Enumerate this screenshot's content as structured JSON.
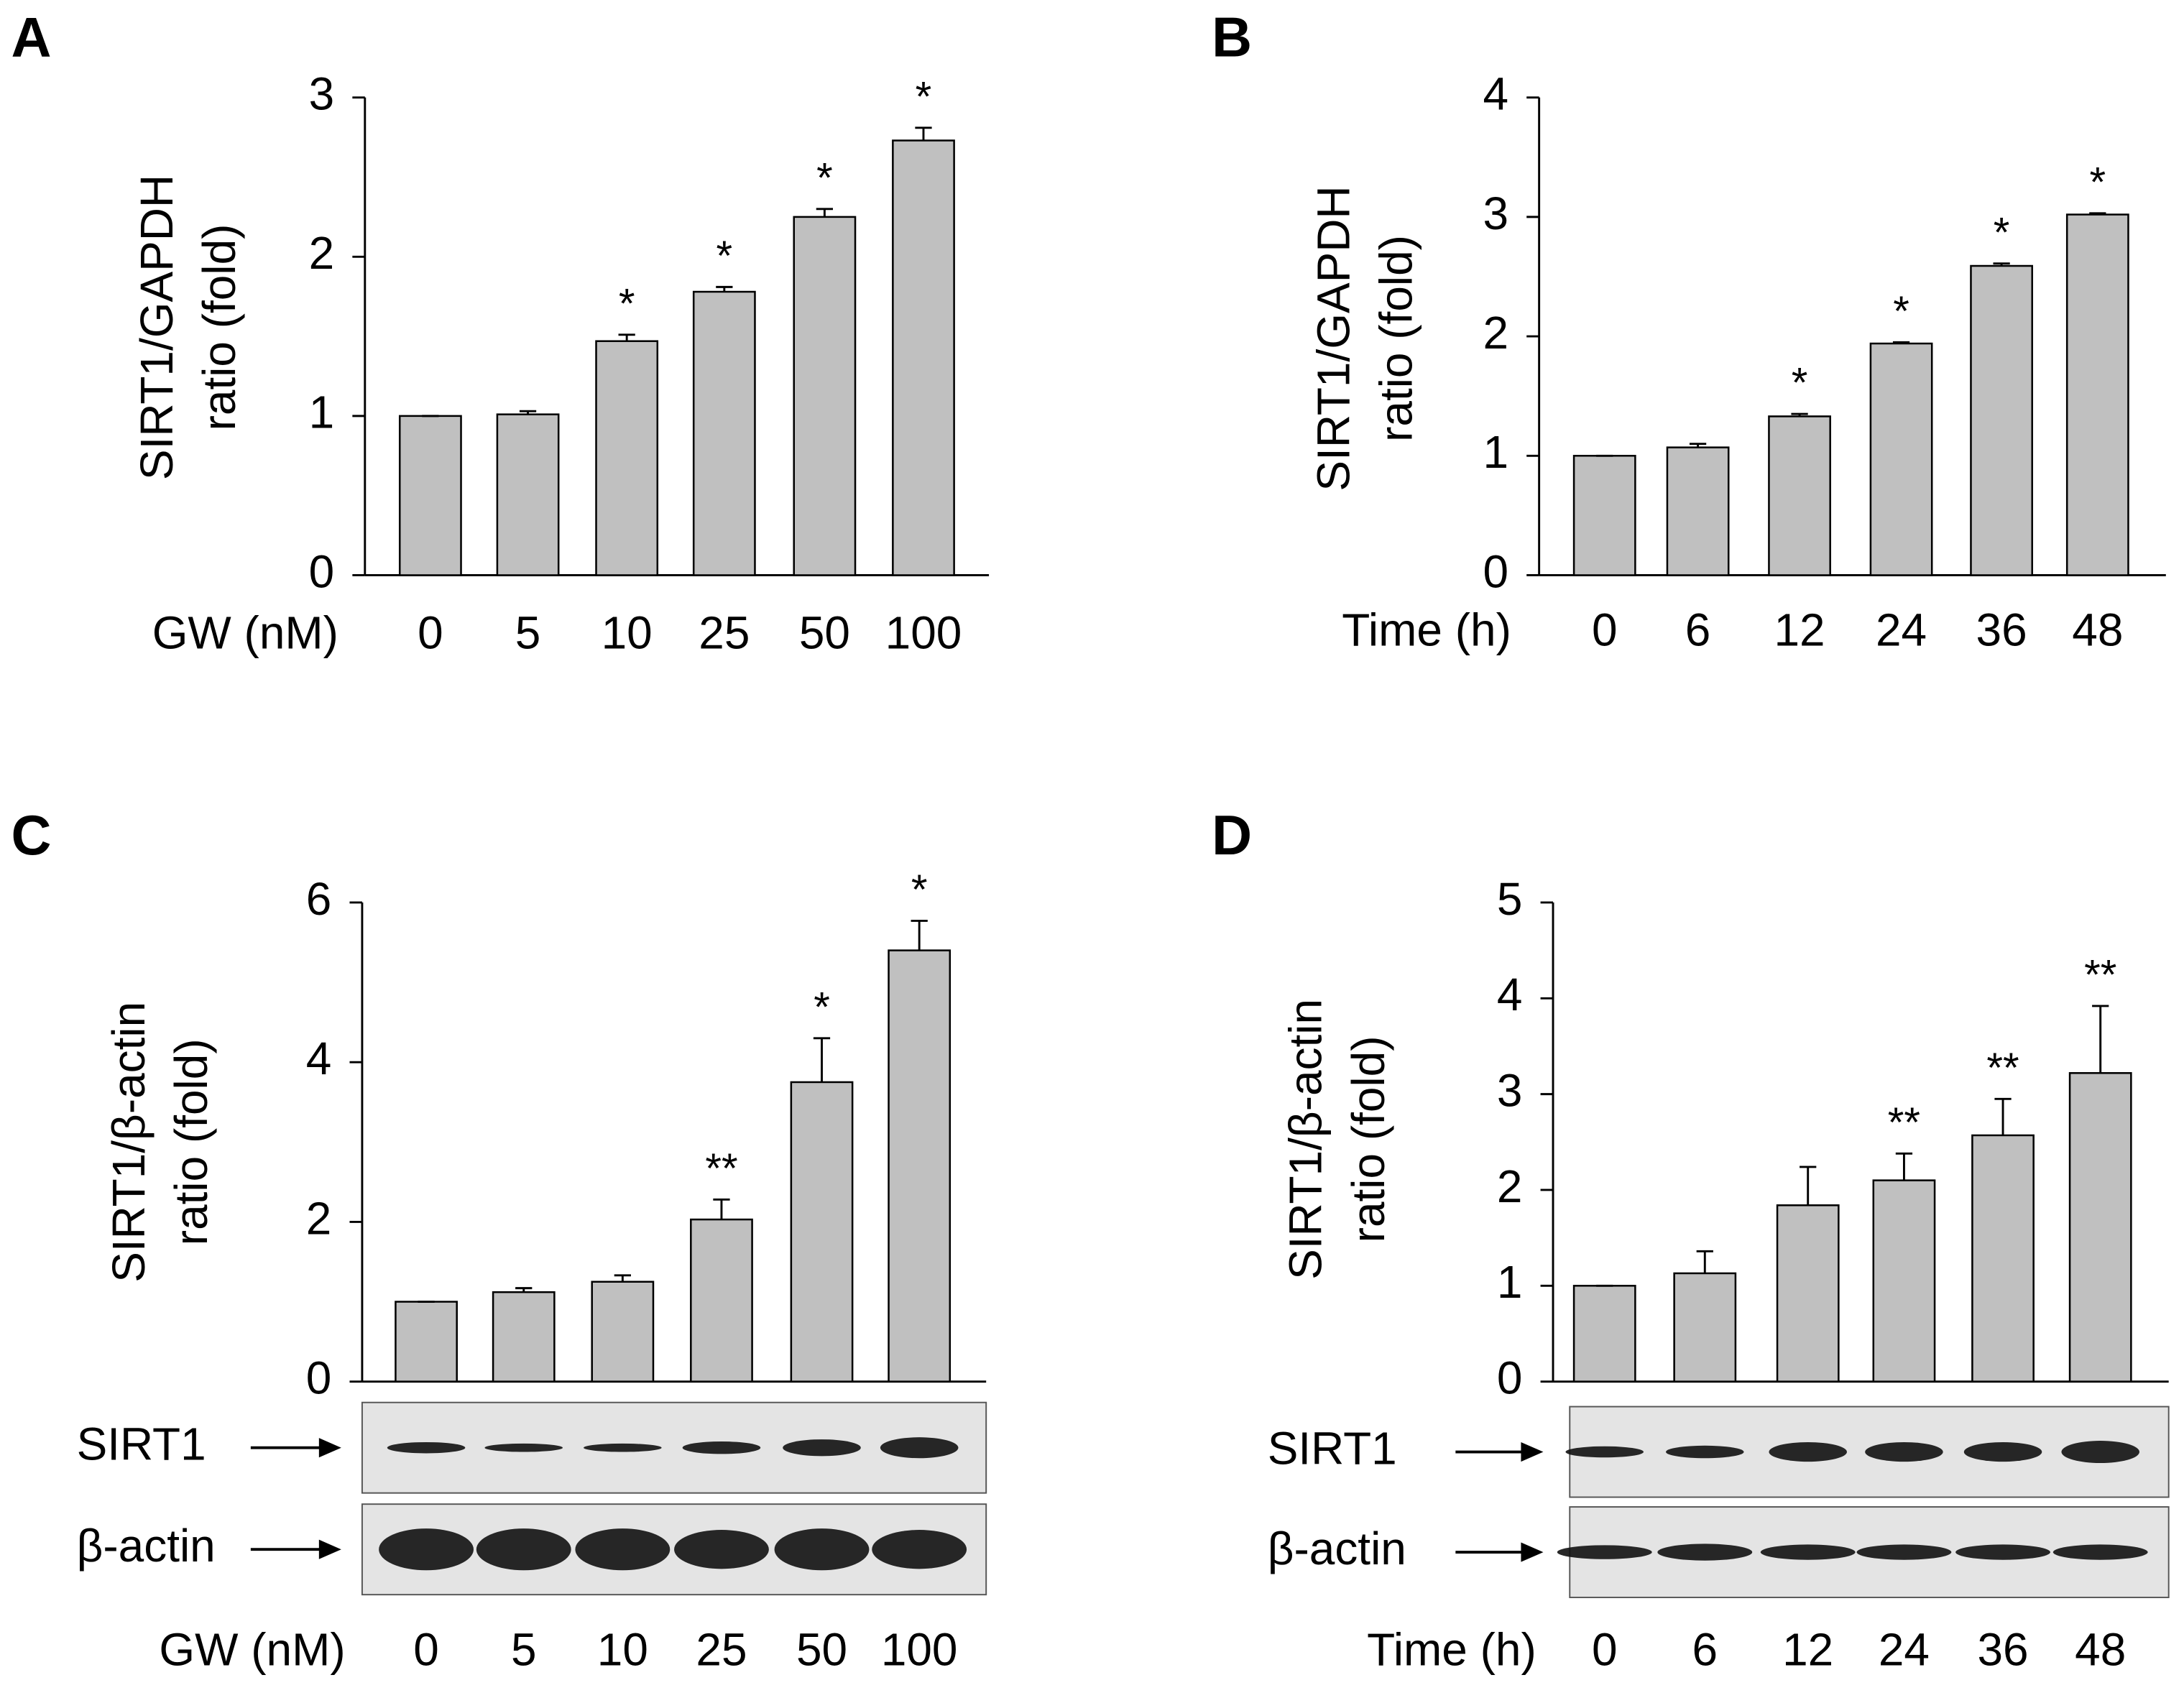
{
  "chart_data": [
    {
      "type": "bar",
      "panel": "A",
      "ylabel": [
        "SIRT1/GAPDH",
        "ratio (fold)"
      ],
      "xlabel": "GW (nM)",
      "categories": [
        "0",
        "5",
        "10",
        "25",
        "50",
        "100"
      ],
      "values": [
        1,
        1.01,
        1.47,
        1.78,
        2.25,
        2.73
      ],
      "errors": [
        0,
        0.02,
        0.04,
        0.03,
        0.05,
        0.08
      ],
      "annotations": [
        null,
        null,
        "*",
        "*",
        "*",
        "*"
      ],
      "color": "#c0c0c0",
      "ylim": [
        0,
        3
      ],
      "yticks": [
        0,
        1,
        2,
        3
      ]
    },
    {
      "type": "bar",
      "panel": "B",
      "ylabel": [
        "SIRT1/GAPDH",
        "ratio (fold)"
      ],
      "xlabel": "Time (h)",
      "categories": [
        "0",
        "6",
        "12",
        "24",
        "36",
        "48"
      ],
      "values": [
        1,
        1.07,
        1.33,
        1.94,
        2.59,
        3.02
      ],
      "errors": [
        0,
        0.03,
        0.02,
        0.01,
        0.02,
        0.01
      ],
      "annotations": [
        null,
        null,
        "*",
        "*",
        "*",
        "*"
      ],
      "color": "#c0c0c0",
      "ylim": [
        0,
        4
      ],
      "yticks": [
        0,
        1,
        2,
        3,
        4
      ]
    },
    {
      "type": "bar",
      "panel": "C",
      "ylabel": [
        "SIRT1/β-actin",
        "ratio (fold)"
      ],
      "xlabel": "GW (nM)",
      "categories": [
        "0",
        "5",
        "10",
        "25",
        "50",
        "100"
      ],
      "values": [
        1,
        1.12,
        1.25,
        2.03,
        3.75,
        5.4
      ],
      "errors": [
        0,
        0.05,
        0.08,
        0.25,
        0.55,
        0.37
      ],
      "annotations": [
        null,
        null,
        null,
        "**",
        "*",
        "*"
      ],
      "color": "#c0c0c0",
      "ylim": [
        0,
        6
      ],
      "yticks": [
        0,
        2,
        4,
        6
      ],
      "blot_labels": [
        "SIRT1",
        "β-actin"
      ]
    },
    {
      "type": "bar",
      "panel": "D",
      "ylabel": [
        "SIRT1/β-actin",
        "ratio (fold)"
      ],
      "xlabel": "Time (h)",
      "categories": [
        "0",
        "6",
        "12",
        "24",
        "36",
        "48"
      ],
      "values": [
        1,
        1.13,
        1.84,
        2.1,
        2.57,
        3.22
      ],
      "errors": [
        0,
        0.23,
        0.4,
        0.28,
        0.38,
        0.7
      ],
      "annotations": [
        null,
        null,
        null,
        "**",
        "**",
        "**"
      ],
      "color": "#c0c0c0",
      "ylim": [
        0,
        5
      ],
      "yticks": [
        0,
        1,
        2,
        3,
        4,
        5
      ],
      "blot_labels": [
        "SIRT1",
        "β-actin"
      ]
    }
  ]
}
